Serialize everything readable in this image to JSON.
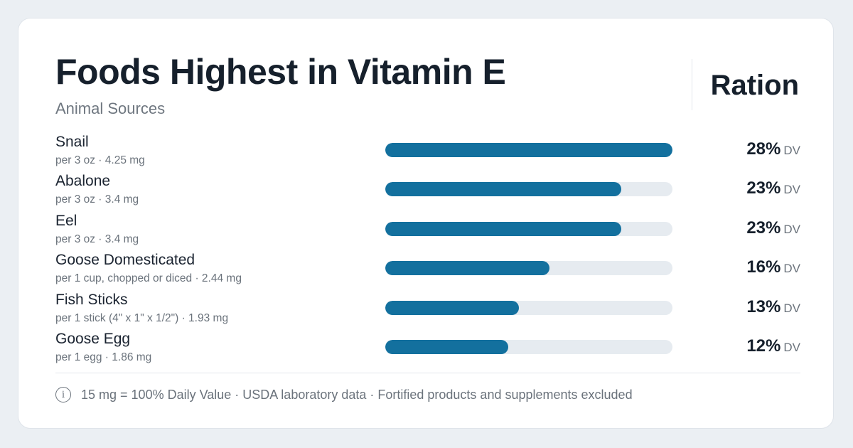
{
  "header": {
    "title": "Foods Highest in Vitamin E",
    "subtitle": "Animal Sources",
    "brand": "Ration"
  },
  "chart_data": {
    "type": "bar",
    "orientation": "horizontal",
    "title": "Foods Highest in Vitamin E",
    "subtitle": "Animal Sources",
    "value_unit": "% DV",
    "xlim": [
      0,
      28
    ],
    "grid": false,
    "legend": "none",
    "bar_color": "#13709e",
    "track_color": "#e6ebf0",
    "categories": [
      "Snail",
      "Abalone",
      "Eel",
      "Goose Domesticated",
      "Fish Sticks",
      "Goose Egg"
    ],
    "values": [
      28,
      23,
      23,
      16,
      13,
      12
    ],
    "rows": [
      {
        "name": "Snail",
        "serving": "per 3 oz · 4.25 mg",
        "value": 28,
        "value_label": "28%",
        "unit_label": "DV"
      },
      {
        "name": "Abalone",
        "serving": "per 3 oz · 3.4 mg",
        "value": 23,
        "value_label": "23%",
        "unit_label": "DV"
      },
      {
        "name": "Eel",
        "serving": "per 3 oz · 3.4 mg",
        "value": 23,
        "value_label": "23%",
        "unit_label": "DV"
      },
      {
        "name": "Goose Domesticated",
        "serving": "per 1 cup, chopped or diced · 2.44 mg",
        "value": 16,
        "value_label": "16%",
        "unit_label": "DV"
      },
      {
        "name": "Fish Sticks",
        "serving": "per 1 stick (4\" x 1\" x 1/2\") · 1.93 mg",
        "value": 13,
        "value_label": "13%",
        "unit_label": "DV"
      },
      {
        "name": "Goose Egg",
        "serving": "per 1 egg · 1.86 mg",
        "value": 12,
        "value_label": "12%",
        "unit_label": "DV"
      }
    ]
  },
  "footer": {
    "icon": "info-icon",
    "icon_glyph": "i",
    "note": "15 mg = 100% Daily Value · USDA laboratory data · Fortified products and supplements excluded"
  }
}
